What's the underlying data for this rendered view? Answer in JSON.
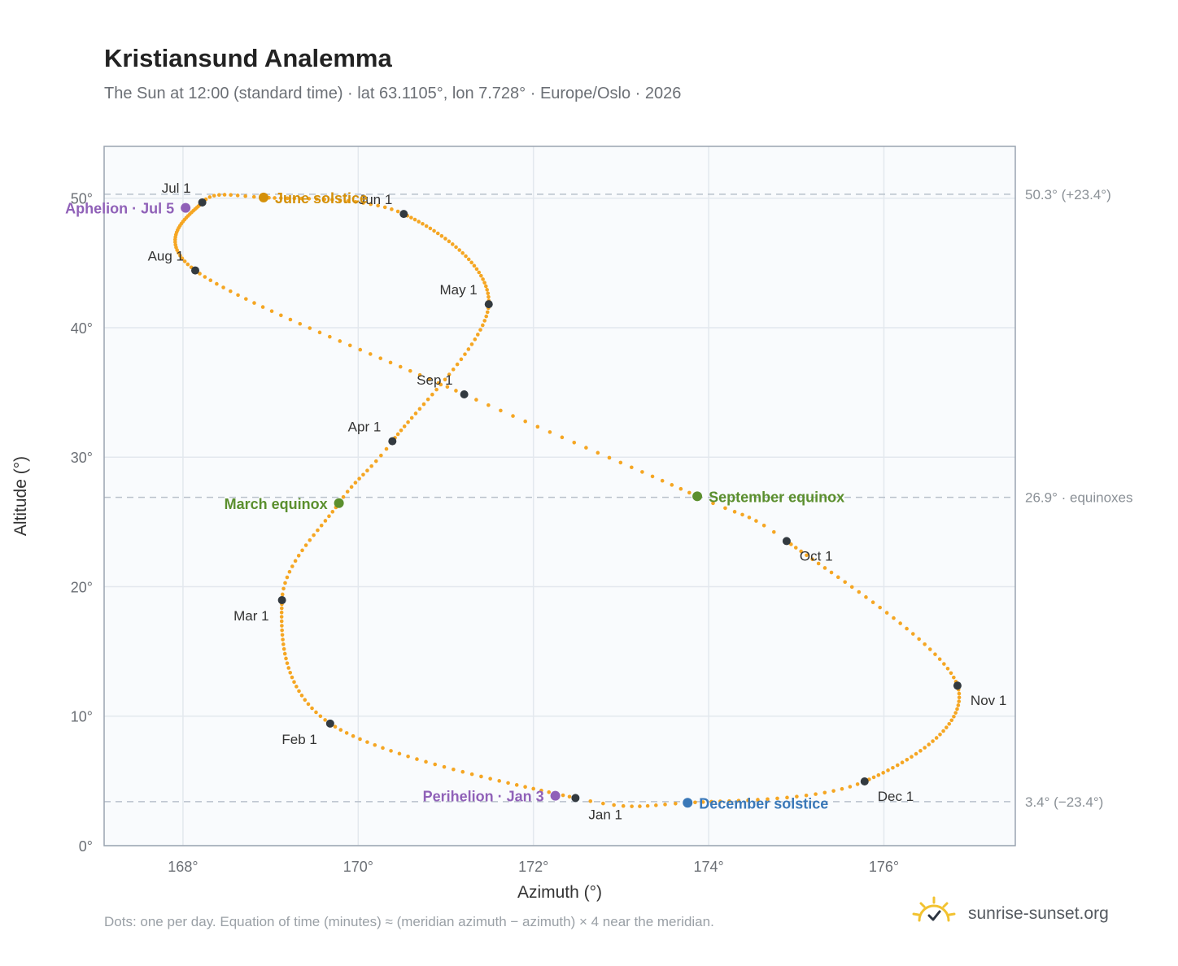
{
  "header": {
    "title": "Kristiansund Analemma",
    "subtitle": "The Sun at 12:00 (standard time) · lat 63.1105°, lon 7.728° · Europe/Oslo · 2026"
  },
  "footer": {
    "note": "Dots: one per day. Equation of time (minutes) ≈ (meridian azimuth − azimuth) × 4 near the meridian.",
    "brand": "sunrise-sunset.org"
  },
  "colors": {
    "curve": "#f5a623",
    "month_marker": "#333a40",
    "equinox": "#5b8f2e",
    "june_solstice": "#d4900a",
    "december_solstice": "#3a78b8",
    "apsis": "#9061b8",
    "plot_bg": "#f9fbfd",
    "grid": "#e3e8ee",
    "frame": "#9aa4b0",
    "ref_line": "#b9c1cb",
    "brand_logo": "#f2c230"
  },
  "chart_data": {
    "type": "scatter",
    "xlabel": "Azimuth (°)",
    "ylabel": "Altitude (°)",
    "xlim": [
      167.1,
      177.5
    ],
    "ylim": [
      0,
      54
    ],
    "x_ticks": [
      168,
      170,
      172,
      174,
      176
    ],
    "x_tick_labels": [
      "168°",
      "170°",
      "172°",
      "174°",
      "176°"
    ],
    "y_ticks": [
      0,
      10,
      20,
      30,
      40,
      50
    ],
    "y_tick_labels": [
      "0°",
      "10°",
      "20°",
      "30°",
      "40°",
      "50°"
    ],
    "grid": true,
    "reference_lines": [
      {
        "y": 50.3,
        "label": "50.3° (+23.4°)"
      },
      {
        "y": 26.9,
        "label": "26.9° · equinoxes"
      },
      {
        "y": 3.4,
        "label": "3.4° (−23.4°)"
      }
    ],
    "analemma_path": [
      {
        "day": 1,
        "x": 172.48,
        "y": 3.68
      },
      {
        "day": 32,
        "x": 169.68,
        "y": 9.43
      },
      {
        "day": 60,
        "x": 169.13,
        "y": 18.96
      },
      {
        "day": 79,
        "x": 169.78,
        "y": 26.45
      },
      {
        "day": 91,
        "x": 170.39,
        "y": 31.23
      },
      {
        "day": 121,
        "x": 171.49,
        "y": 41.81
      },
      {
        "day": 152,
        "x": 170.52,
        "y": 48.78
      },
      {
        "day": 172,
        "x": 168.92,
        "y": 50.05
      },
      {
        "day": 182,
        "x": 168.22,
        "y": 49.67
      },
      {
        "day": 213,
        "x": 168.14,
        "y": 44.42
      },
      {
        "day": 244,
        "x": 171.21,
        "y": 34.85
      },
      {
        "day": 265,
        "x": 173.87,
        "y": 26.98
      },
      {
        "day": 274,
        "x": 174.89,
        "y": 23.52
      },
      {
        "day": 305,
        "x": 176.84,
        "y": 12.36
      },
      {
        "day": 335,
        "x": 175.78,
        "y": 4.96
      },
      {
        "day": 355,
        "x": 173.76,
        "y": 3.31
      },
      {
        "day": 365,
        "x": 172.48,
        "y": 3.68
      }
    ],
    "month_markers": [
      {
        "label": "Jan 1",
        "x": 172.48,
        "y": 3.68,
        "anchor": "below"
      },
      {
        "label": "Feb 1",
        "x": 169.68,
        "y": 9.43,
        "anchor": "left-below"
      },
      {
        "label": "Mar 1",
        "x": 169.13,
        "y": 18.96,
        "anchor": "left-below"
      },
      {
        "label": "Apr 1",
        "x": 170.39,
        "y": 31.23,
        "anchor": "left-above"
      },
      {
        "label": "May 1",
        "x": 171.49,
        "y": 41.81,
        "anchor": "left-above"
      },
      {
        "label": "Jun 1",
        "x": 170.52,
        "y": 48.78,
        "anchor": "left-above"
      },
      {
        "label": "Jul 1",
        "x": 168.22,
        "y": 49.67,
        "anchor": "left-above"
      },
      {
        "label": "Aug 1",
        "x": 168.14,
        "y": 44.42,
        "anchor": "left-above"
      },
      {
        "label": "Sep 1",
        "x": 171.21,
        "y": 34.85,
        "anchor": "left-above"
      },
      {
        "label": "Oct 1",
        "x": 174.89,
        "y": 23.52,
        "anchor": "right-below"
      },
      {
        "label": "Nov 1",
        "x": 176.84,
        "y": 12.36,
        "anchor": "right-below"
      },
      {
        "label": "Dec 1",
        "x": 175.78,
        "y": 4.96,
        "anchor": "right-below"
      }
    ],
    "events": [
      {
        "label": "June solstice",
        "x": 168.92,
        "y": 50.05,
        "color_key": "june_solstice",
        "side": "right"
      },
      {
        "label": "March equinox",
        "x": 169.78,
        "y": 26.45,
        "color_key": "equinox",
        "side": "left"
      },
      {
        "label": "September equinox",
        "x": 173.87,
        "y": 26.98,
        "color_key": "equinox",
        "side": "right"
      },
      {
        "label": "December solstice",
        "x": 173.76,
        "y": 3.31,
        "color_key": "december_solstice",
        "side": "right"
      },
      {
        "label": "Aphelion · Jul 5",
        "x": 168.03,
        "y": 49.25,
        "color_key": "apsis",
        "side": "left"
      },
      {
        "label": "Perihelion · Jan 3",
        "x": 172.25,
        "y": 3.85,
        "color_key": "apsis",
        "side": "left"
      }
    ]
  }
}
